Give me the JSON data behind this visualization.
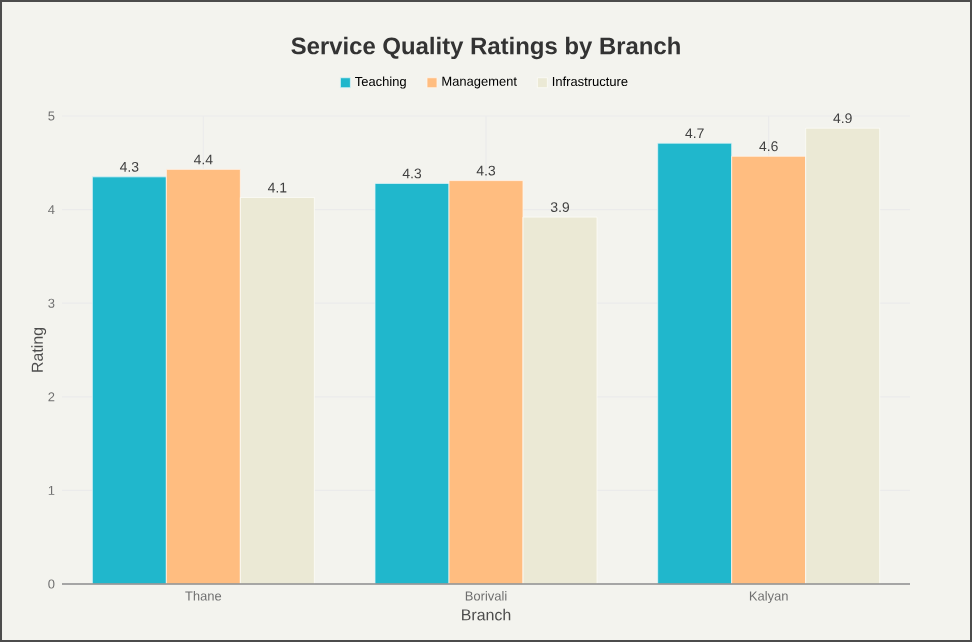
{
  "chart_data": {
    "type": "bar",
    "title": "Service Quality Ratings by Branch",
    "xlabel": "Branch",
    "ylabel": "Rating",
    "categories": [
      "Thane",
      "Borivali",
      "Kalyan"
    ],
    "series": [
      {
        "name": "Teaching",
        "color": "#20b7cc",
        "values": [
          4.35,
          4.28,
          4.71
        ],
        "value_labels": [
          "4.3",
          "4.3",
          "4.7"
        ]
      },
      {
        "name": "Management",
        "color": "#ffbd80",
        "values": [
          4.43,
          4.31,
          4.57
        ],
        "value_labels": [
          "4.4",
          "4.3",
          "4.6"
        ]
      },
      {
        "name": "Infrastructure",
        "color": "#ebe9d5",
        "values": [
          4.13,
          3.92,
          4.87
        ],
        "value_labels": [
          "4.1",
          "3.9",
          "4.9"
        ]
      }
    ],
    "ylim": [
      0,
      5
    ],
    "yticks": [
      0,
      1,
      2,
      3,
      4,
      5
    ],
    "grid": true,
    "legend": "top"
  }
}
